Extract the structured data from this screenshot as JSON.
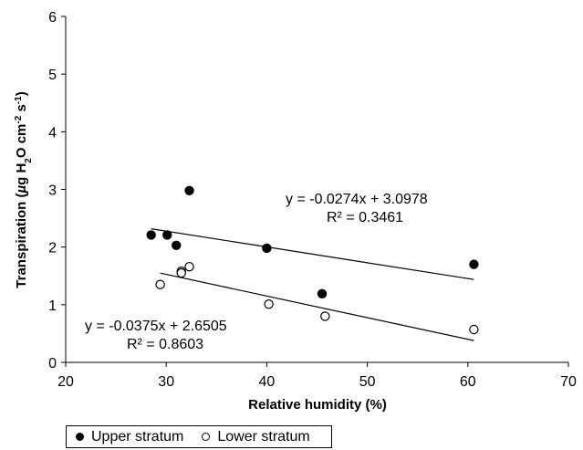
{
  "chart_data": {
    "type": "scatter",
    "xlabel": "Relative humidity (%)",
    "ylabel": "Transpiration (µg H2O cm-2 s-1)",
    "ylabel_parts": {
      "prefix": "Transpiration (",
      "mu": "µ",
      "g": "g H",
      "sub2": "2",
      "o": "O cm",
      "supNeg2": "-2",
      "s": " s",
      "supNeg1": "-1",
      "close": ")"
    },
    "xlim": [
      20,
      70
    ],
    "ylim": [
      0,
      6
    ],
    "x_ticks": [
      "20",
      "30",
      "40",
      "50",
      "60",
      "70"
    ],
    "y_ticks": [
      "0",
      "1",
      "2",
      "3",
      "4",
      "5",
      "6"
    ],
    "grid": false,
    "legend_position": "bottom-left",
    "series": [
      {
        "name": "Upper stratum",
        "marker": "filled-circle",
        "color": "#000000",
        "points": [
          {
            "x": 28.5,
            "y": 2.21
          },
          {
            "x": 30.1,
            "y": 2.21
          },
          {
            "x": 31.0,
            "y": 2.03
          },
          {
            "x": 32.3,
            "y": 2.98
          },
          {
            "x": 40.0,
            "y": 1.98
          },
          {
            "x": 45.5,
            "y": 1.19
          },
          {
            "x": 60.6,
            "y": 1.7
          }
        ],
        "trendline": {
          "slope": -0.0274,
          "intercept": 3.0978,
          "x_range": [
            28.5,
            60.6
          ]
        },
        "equation": "y = -0.0274x + 3.0978",
        "r2": "R² = 0.3461"
      },
      {
        "name": "Lower stratum",
        "marker": "open-circle",
        "color": "#000000",
        "points": [
          {
            "x": 29.4,
            "y": 1.35
          },
          {
            "x": 31.5,
            "y": 1.58
          },
          {
            "x": 31.5,
            "y": 1.55
          },
          {
            "x": 32.3,
            "y": 1.66
          },
          {
            "x": 40.2,
            "y": 1.01
          },
          {
            "x": 45.8,
            "y": 0.8
          },
          {
            "x": 60.6,
            "y": 0.57
          }
        ],
        "trendline": {
          "slope": -0.0375,
          "intercept": 2.6505,
          "x_range": [
            29.4,
            60.6
          ]
        },
        "equation": "y = -0.0375x + 2.6505",
        "r2": "R² = 0.8603"
      }
    ]
  }
}
